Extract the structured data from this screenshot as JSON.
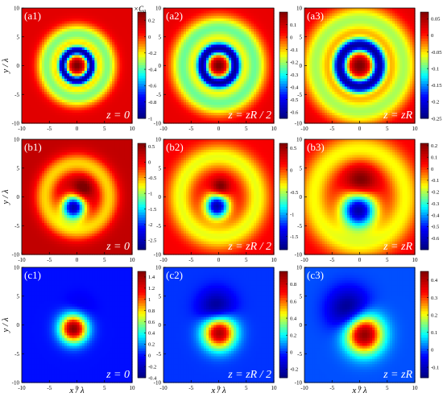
{
  "figure": {
    "x_axis_label": "x / λ",
    "y_axis_label": "y / λ",
    "colorbar_unit": "×C",
    "colorbar_unit_subscript": "0"
  },
  "chart_data": {
    "type": "heatmap",
    "colormap": [
      "#00007f",
      "#0000ff",
      "#00ffff",
      "#ffff00",
      "#ff0000",
      "#7f0000"
    ],
    "panels": [
      {
        "label": "(a1)",
        "z": "z = 0",
        "x_ticks": [
          "-10",
          "-5",
          "0",
          "5",
          "10"
        ],
        "y_ticks": [
          "10",
          "5",
          "0",
          "-5",
          "-10"
        ],
        "xlim": [
          -10,
          10
        ],
        "ylim": [
          -10,
          10
        ],
        "clim": [
          -1.0,
          0.3
        ],
        "colorbar_ticks": [
          "0.2",
          "0",
          "-0.2",
          "-0.4",
          "-0.6",
          "-0.8",
          "-1"
        ],
        "field": {
          "kind": "ring",
          "bg": 0.1,
          "ring_r": 5.5,
          "ring_w": 1.3,
          "ring_a": -0.45,
          "core_r": 2.6,
          "core_w": 0.6,
          "core_a": -1.0,
          "center_a": 0.3,
          "center_s": 0.55
        }
      },
      {
        "label": "(a2)",
        "z": "z = zR / 2",
        "x_ticks": [
          "-10",
          "-5",
          "0",
          "5",
          "10"
        ],
        "y_ticks": [
          "10",
          "5",
          "0",
          "-5",
          "-10"
        ],
        "xlim": [
          -10,
          10
        ],
        "ylim": [
          -10,
          10
        ],
        "clim": [
          -0.65,
          0.2
        ],
        "colorbar_ticks": [
          "0.1",
          "0",
          "-0.1",
          "-0.2",
          "-0.3",
          "-0.4",
          "-0.5",
          "-0.6"
        ],
        "field": {
          "kind": "ring",
          "bg": 0.06,
          "ring_r": 6.5,
          "ring_w": 1.6,
          "ring_a": -0.3,
          "core_r": 3.0,
          "core_w": 0.75,
          "core_a": -0.65,
          "center_a": 0.18,
          "center_s": 0.7
        }
      },
      {
        "label": "(a3)",
        "z": "z = zR",
        "x_ticks": [
          "-10",
          "-5",
          "0",
          "5",
          "10"
        ],
        "y_ticks": [
          "10",
          "5",
          "0",
          "-5",
          "-10"
        ],
        "xlim": [
          -10,
          10
        ],
        "ylim": [
          -10,
          10
        ],
        "clim": [
          -0.25,
          0.07
        ],
        "colorbar_ticks": [
          "0.05",
          "0",
          "-0.05",
          "-0.1",
          "-0.15",
          "-0.2",
          "-0.25"
        ],
        "field": {
          "kind": "ring",
          "bg": 0.02,
          "ring_r": 8.0,
          "ring_w": 1.8,
          "ring_a": -0.1,
          "core_r": 3.6,
          "core_w": 0.9,
          "core_a": -0.25,
          "center_a": 0.06,
          "center_s": 0.9
        }
      },
      {
        "label": "(b1)",
        "z": "z = 0",
        "x_ticks": [
          "-10",
          "-5",
          "0",
          "5",
          "10"
        ],
        "y_ticks": [
          "10",
          "5",
          "0",
          "-5",
          "-10"
        ],
        "xlim": [
          -10,
          10
        ],
        "ylim": [
          -10,
          10
        ],
        "clim": [
          -2.8,
          0.6
        ],
        "colorbar_ticks": [
          "0.5",
          "0",
          "-0.5",
          "-1",
          "-1.5",
          "-2",
          "-2.5"
        ],
        "field": {
          "kind": "asym",
          "bg": 0.25,
          "ring_r": 5.8,
          "ring_w": 1.4,
          "ring_a": -0.9,
          "neg_x": -0.6,
          "neg_y": -1.8,
          "neg_s": 1.5,
          "neg_a": -2.8,
          "pos_x": 1.0,
          "pos_y": 1.4,
          "pos_s": 1.2,
          "pos_a": 0.6
        }
      },
      {
        "label": "(b2)",
        "z": "z = zR / 2",
        "x_ticks": [
          "-10",
          "-5",
          "0",
          "5",
          "10"
        ],
        "y_ticks": [
          "10",
          "5",
          "0",
          "-5",
          "-10"
        ],
        "xlim": [
          -10,
          10
        ],
        "ylim": [
          -10,
          10
        ],
        "clim": [
          -1.8,
          0.6
        ],
        "colorbar_ticks": [
          "0.5",
          "0",
          "-0.5",
          "-1",
          "-1.5"
        ],
        "field": {
          "kind": "asym",
          "bg": 0.15,
          "ring_r": 7.0,
          "ring_w": 1.6,
          "ring_a": -0.55,
          "neg_x": -0.3,
          "neg_y": -1.6,
          "neg_s": 1.5,
          "neg_a": -1.8,
          "pos_x": 0.3,
          "pos_y": 1.6,
          "pos_s": 1.1,
          "pos_a": 0.6
        }
      },
      {
        "label": "(b3)",
        "z": "z = zR",
        "x_ticks": [
          "-10",
          "-5",
          "0",
          "5",
          "10"
        ],
        "y_ticks": [
          "10",
          "5",
          "0",
          "-5",
          "-10"
        ],
        "xlim": [
          -10,
          10
        ],
        "ylim": [
          -10,
          10
        ],
        "clim": [
          -0.7,
          0.22
        ],
        "colorbar_ticks": [
          "0.2",
          "0.1",
          "0",
          "-0.1",
          "-0.2",
          "-0.3",
          "-0.4",
          "-0.5",
          "-0.6"
        ],
        "field": {
          "kind": "asym",
          "bg": 0.05,
          "ring_r": 8.3,
          "ring_w": 1.8,
          "ring_a": -0.2,
          "neg_x": -0.2,
          "neg_y": -2.3,
          "neg_s": 2.2,
          "neg_a": -0.7,
          "pos_x": 0.2,
          "pos_y": 2.4,
          "pos_s": 1.9,
          "pos_a": 0.22
        }
      },
      {
        "label": "(c1)",
        "z": "z = 0",
        "x_ticks": [
          "-10",
          "-5",
          "0",
          "5",
          "10"
        ],
        "y_ticks": [
          "10",
          "5",
          "0",
          "-5",
          "-10"
        ],
        "xlim": [
          -10,
          10
        ],
        "ylim": [
          -10,
          10
        ],
        "clim": [
          -0.4,
          1.5
        ],
        "colorbar_ticks": [
          "1.4",
          "1.2",
          "1",
          "0.8",
          "0.6",
          "0.4",
          "0.2",
          "0",
          "-0.2",
          "-0.4"
        ],
        "field": {
          "kind": "blob",
          "bg": 0.0,
          "px": -0.6,
          "py": -0.6,
          "ps": 1.7,
          "pa": 1.5,
          "nx": 0.3,
          "ny": 2.3,
          "ns": 1.8,
          "na": -0.12
        }
      },
      {
        "label": "(c2)",
        "z": "z = zR / 2",
        "x_ticks": [
          "-10",
          "-5",
          "0",
          "5",
          "10"
        ],
        "y_ticks": [
          "10",
          "5",
          "0",
          "-5",
          "-10"
        ],
        "xlim": [
          -10,
          10
        ],
        "ylim": [
          -10,
          10
        ],
        "clim": [
          -0.3,
          0.95
        ],
        "colorbar_ticks": [
          "0.8",
          "0.6",
          "0.4",
          "0.2",
          "0",
          "-0.2"
        ],
        "field": {
          "kind": "blob",
          "bg": 0.0,
          "px": 0.1,
          "py": -1.3,
          "ps": 2.0,
          "pa": 0.9,
          "nx": -0.4,
          "ny": 2.8,
          "ns": 2.1,
          "na": -0.3
        }
      },
      {
        "label": "(c3)",
        "z": "z = zR",
        "x_ticks": [
          "-10",
          "-5",
          "0",
          "5",
          "10"
        ],
        "y_ticks": [
          "10",
          "5",
          "0",
          "-5",
          "-10"
        ],
        "xlim": [
          -10,
          10
        ],
        "ylim": [
          -10,
          10
        ],
        "clim": [
          -0.16,
          0.45
        ],
        "colorbar_ticks": [
          "0.4",
          "0.3",
          "0.2",
          "0.1",
          "0",
          "-0.1"
        ],
        "field": {
          "kind": "blob",
          "bg": 0.0,
          "px": 0.8,
          "py": -1.6,
          "ps": 2.3,
          "pa": 0.45,
          "nx": -2.0,
          "ny": 2.6,
          "ns": 2.5,
          "na": -0.16
        }
      }
    ]
  }
}
